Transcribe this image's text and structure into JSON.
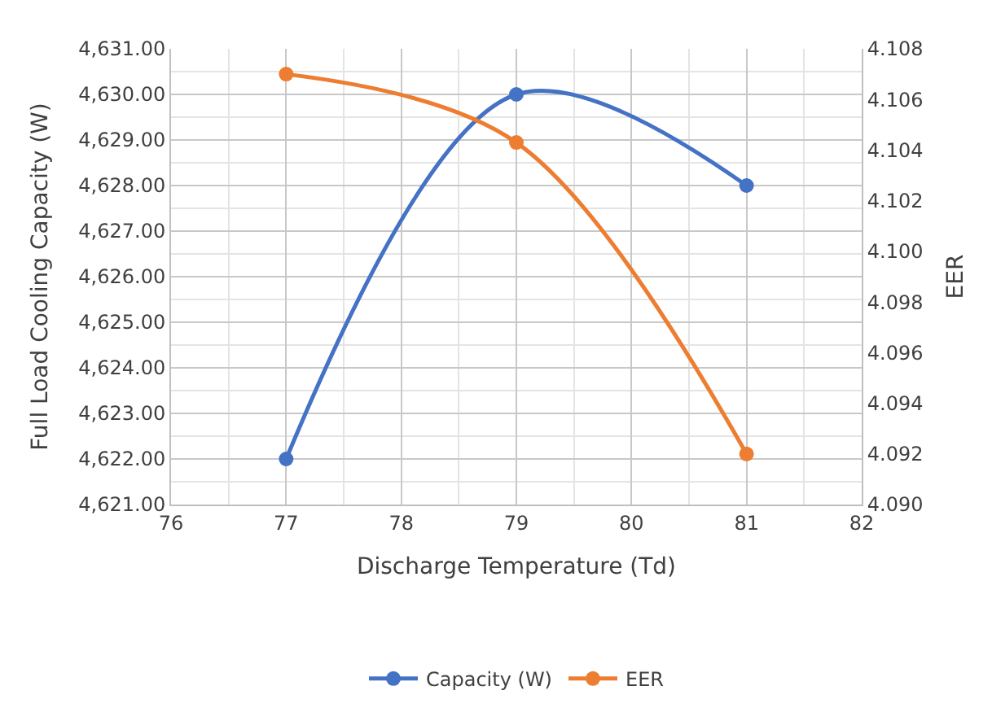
{
  "chart_data": {
    "type": "line",
    "xlabel": "Discharge Temperature (Td)",
    "ylabel": "Full Load Cooling Capacity (W)",
    "y2label": "EER",
    "x": [
      77,
      79,
      81
    ],
    "series": [
      {
        "name": "Capacity (W)",
        "color": "#4472c4",
        "values": [
          4622,
          4630,
          4628
        ]
      },
      {
        "name": "EER",
        "color": "#ed7d31",
        "values": [
          4.107,
          4.1043,
          4.092
        ],
        "axis": "y2"
      }
    ],
    "xlim": [
      76,
      82
    ],
    "xticks": [
      76,
      77,
      78,
      79,
      80,
      81,
      82
    ],
    "ylim": [
      4621,
      4631
    ],
    "yticks": [
      {
        "value": 4621,
        "label": "4,621.00"
      },
      {
        "value": 4622,
        "label": "4,622.00"
      },
      {
        "value": 4623,
        "label": "4,623.00"
      },
      {
        "value": 4624,
        "label": "4,624.00"
      },
      {
        "value": 4625,
        "label": "4,625.00"
      },
      {
        "value": 4626,
        "label": "4,626.00"
      },
      {
        "value": 4627,
        "label": "4,627.00"
      },
      {
        "value": 4628,
        "label": "4,628.00"
      },
      {
        "value": 4629,
        "label": "4,629.00"
      },
      {
        "value": 4630,
        "label": "4,630.00"
      },
      {
        "value": 4631,
        "label": "4,631.00"
      }
    ],
    "y2lim": [
      4.09,
      4.108
    ],
    "y2ticks": [
      {
        "value": 4.09,
        "label": "4.090"
      },
      {
        "value": 4.092,
        "label": "4.092"
      },
      {
        "value": 4.094,
        "label": "4.094"
      },
      {
        "value": 4.096,
        "label": "4.096"
      },
      {
        "value": 4.098,
        "label": "4.098"
      },
      {
        "value": 4.1,
        "label": "4.100"
      },
      {
        "value": 4.102,
        "label": "4.102"
      },
      {
        "value": 4.104,
        "label": "4.104"
      },
      {
        "value": 4.106,
        "label": "4.106"
      },
      {
        "value": 4.108,
        "label": "4.108"
      }
    ],
    "grid": true,
    "legend": "bottom",
    "marker": "circle",
    "line_style": "solid"
  }
}
